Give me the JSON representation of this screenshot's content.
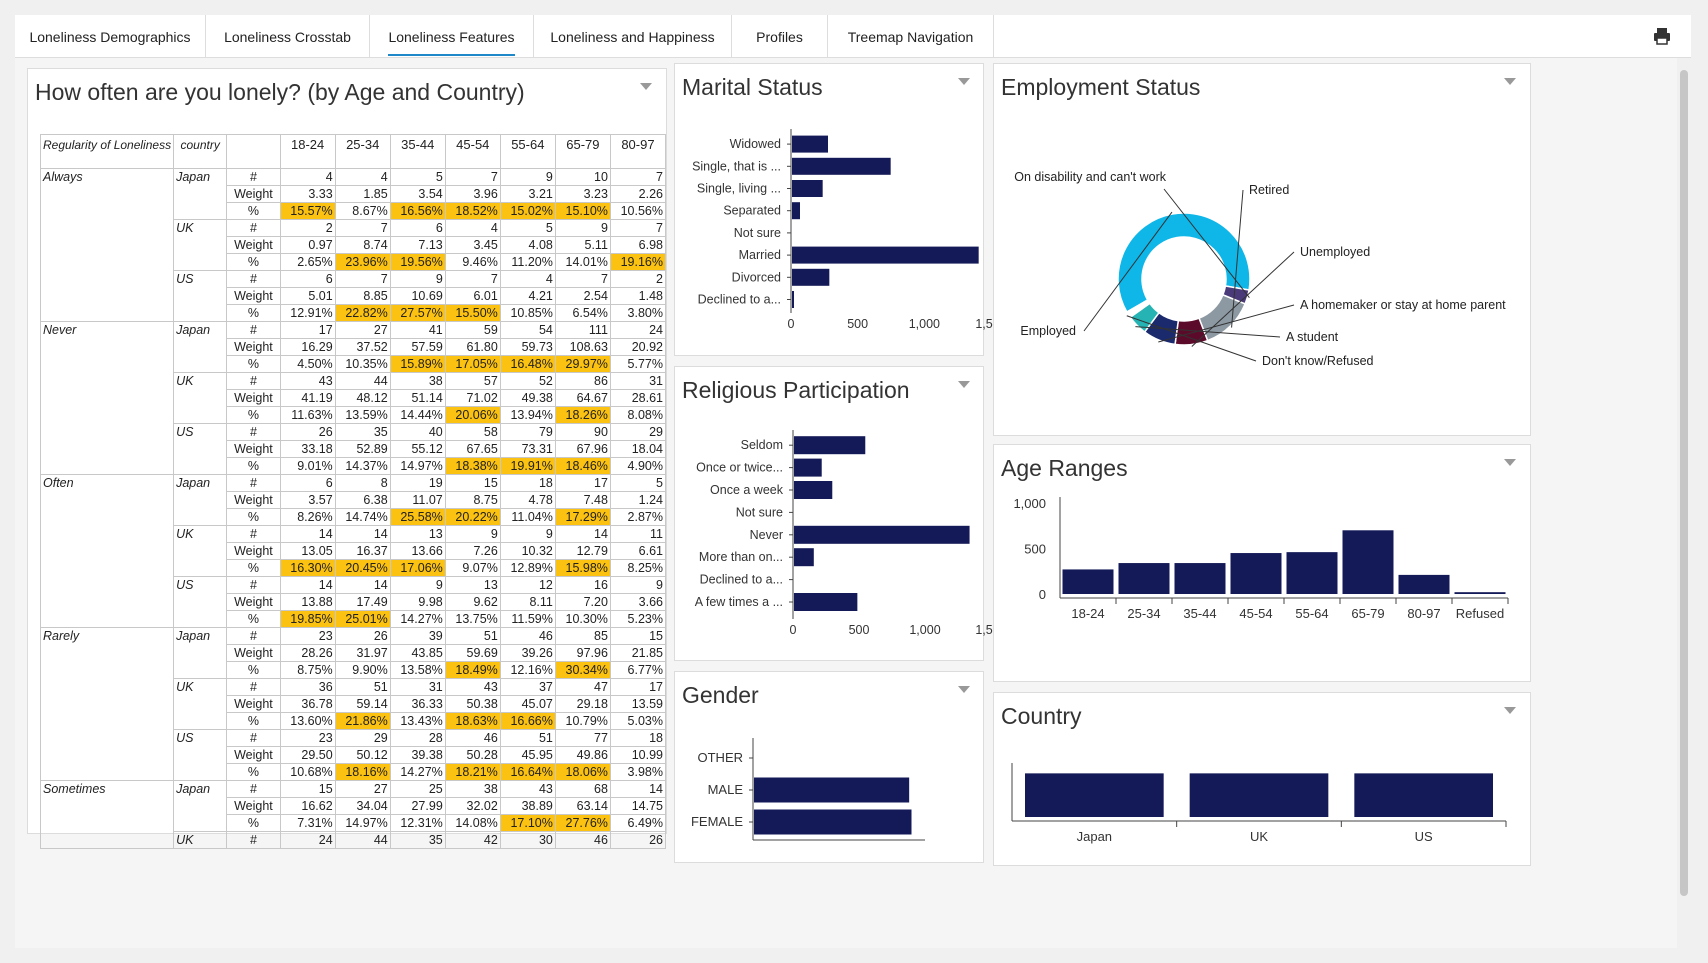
{
  "tabs": [
    {
      "label": "Loneliness Demographics",
      "active": false
    },
    {
      "label": "Loneliness Crosstab",
      "active": false
    },
    {
      "label": "Loneliness Features",
      "active": true
    },
    {
      "label": "Loneliness and Happiness",
      "active": false
    },
    {
      "label": "Profiles",
      "active": false
    },
    {
      "label": "Treemap Navigation",
      "active": false
    }
  ],
  "toolbar": {
    "print_icon": "printer-icon"
  },
  "colors": {
    "bar": "#141a57",
    "highlight": "#fcc211",
    "employed": "#0fb6e8",
    "retired": "#8c98a2",
    "unemployed": "#5c0a2a",
    "homemaker": "#1a2a6c",
    "student": "#26b3b3",
    "disability": "#4a3a7a",
    "tab_underline": "#1e88c8"
  },
  "crosstab": {
    "title": "How often are you lonely? (by Age and Country)",
    "header_regularity": "Regularity of Loneliness",
    "header_country": "country",
    "age_columns": [
      "18-24",
      "25-34",
      "35-44",
      "45-54",
      "55-64",
      "65-79",
      "80-97"
    ],
    "measures": [
      "#",
      "Weight",
      "%"
    ],
    "rows": [
      {
        "group": "Always",
        "country": "Japan",
        "count": [
          "4",
          "4",
          "5",
          "7",
          "9",
          "10",
          "7"
        ],
        "weight": [
          "3.33",
          "1.85",
          "3.54",
          "3.96",
          "3.21",
          "3.23",
          "2.26"
        ],
        "pct": [
          "15.57%",
          "8.67%",
          "16.56%",
          "18.52%",
          "15.02%",
          "15.10%",
          "10.56%"
        ],
        "hl": [
          1,
          0,
          1,
          1,
          1,
          1,
          0
        ]
      },
      {
        "group": "",
        "country": "UK",
        "count": [
          "2",
          "7",
          "6",
          "4",
          "5",
          "9",
          "7"
        ],
        "weight": [
          "0.97",
          "8.74",
          "7.13",
          "3.45",
          "4.08",
          "5.11",
          "6.98"
        ],
        "pct": [
          "2.65%",
          "23.96%",
          "19.56%",
          "9.46%",
          "11.20%",
          "14.01%",
          "19.16%"
        ],
        "hl": [
          0,
          1,
          1,
          0,
          0,
          0,
          1
        ]
      },
      {
        "group": "",
        "country": "US",
        "count": [
          "6",
          "7",
          "9",
          "7",
          "4",
          "7",
          "2"
        ],
        "weight": [
          "5.01",
          "8.85",
          "10.69",
          "6.01",
          "4.21",
          "2.54",
          "1.48"
        ],
        "pct": [
          "12.91%",
          "22.82%",
          "27.57%",
          "15.50%",
          "10.85%",
          "6.54%",
          "3.80%"
        ],
        "hl": [
          0,
          1,
          1,
          1,
          0,
          0,
          0
        ]
      },
      {
        "group": "Never",
        "country": "Japan",
        "count": [
          "17",
          "27",
          "41",
          "59",
          "54",
          "111",
          "24"
        ],
        "weight": [
          "16.29",
          "37.52",
          "57.59",
          "61.80",
          "59.73",
          "108.63",
          "20.92"
        ],
        "pct": [
          "4.50%",
          "10.35%",
          "15.89%",
          "17.05%",
          "16.48%",
          "29.97%",
          "5.77%"
        ],
        "hl": [
          0,
          0,
          1,
          1,
          1,
          1,
          0
        ]
      },
      {
        "group": "",
        "country": "UK",
        "count": [
          "43",
          "44",
          "38",
          "57",
          "52",
          "86",
          "31"
        ],
        "weight": [
          "41.19",
          "48.12",
          "51.14",
          "71.02",
          "49.38",
          "64.67",
          "28.61"
        ],
        "pct": [
          "11.63%",
          "13.59%",
          "14.44%",
          "20.06%",
          "13.94%",
          "18.26%",
          "8.08%"
        ],
        "hl": [
          0,
          0,
          0,
          1,
          0,
          1,
          0
        ]
      },
      {
        "group": "",
        "country": "US",
        "count": [
          "26",
          "35",
          "40",
          "58",
          "79",
          "90",
          "29"
        ],
        "weight": [
          "33.18",
          "52.89",
          "55.12",
          "67.65",
          "73.31",
          "67.96",
          "18.04"
        ],
        "pct": [
          "9.01%",
          "14.37%",
          "14.97%",
          "18.38%",
          "19.91%",
          "18.46%",
          "4.90%"
        ],
        "hl": [
          0,
          0,
          0,
          1,
          1,
          1,
          0
        ]
      },
      {
        "group": "Often",
        "country": "Japan",
        "count": [
          "6",
          "8",
          "19",
          "15",
          "18",
          "17",
          "5"
        ],
        "weight": [
          "3.57",
          "6.38",
          "11.07",
          "8.75",
          "4.78",
          "7.48",
          "1.24"
        ],
        "pct": [
          "8.26%",
          "14.74%",
          "25.58%",
          "20.22%",
          "11.04%",
          "17.29%",
          "2.87%"
        ],
        "hl": [
          0,
          0,
          1,
          1,
          0,
          1,
          0
        ]
      },
      {
        "group": "",
        "country": "UK",
        "count": [
          "14",
          "14",
          "13",
          "9",
          "9",
          "14",
          "11"
        ],
        "weight": [
          "13.05",
          "16.37",
          "13.66",
          "7.26",
          "10.32",
          "12.79",
          "6.61"
        ],
        "pct": [
          "16.30%",
          "20.45%",
          "17.06%",
          "9.07%",
          "12.89%",
          "15.98%",
          "8.25%"
        ],
        "hl": [
          1,
          1,
          1,
          0,
          0,
          1,
          0
        ]
      },
      {
        "group": "",
        "country": "US",
        "count": [
          "14",
          "14",
          "9",
          "13",
          "12",
          "16",
          "9"
        ],
        "weight": [
          "13.88",
          "17.49",
          "9.98",
          "9.62",
          "8.11",
          "7.20",
          "3.66"
        ],
        "pct": [
          "19.85%",
          "25.01%",
          "14.27%",
          "13.75%",
          "11.59%",
          "10.30%",
          "5.23%"
        ],
        "hl": [
          1,
          1,
          0,
          0,
          0,
          0,
          0
        ]
      },
      {
        "group": "Rarely",
        "country": "Japan",
        "count": [
          "23",
          "26",
          "39",
          "51",
          "46",
          "85",
          "15"
        ],
        "weight": [
          "28.26",
          "31.97",
          "43.85",
          "59.69",
          "39.26",
          "97.96",
          "21.85"
        ],
        "pct": [
          "8.75%",
          "9.90%",
          "13.58%",
          "18.49%",
          "12.16%",
          "30.34%",
          "6.77%"
        ],
        "hl": [
          0,
          0,
          0,
          1,
          0,
          1,
          0
        ]
      },
      {
        "group": "",
        "country": "UK",
        "count": [
          "36",
          "51",
          "31",
          "43",
          "37",
          "47",
          "17"
        ],
        "weight": [
          "36.78",
          "59.14",
          "36.33",
          "50.38",
          "45.07",
          "29.18",
          "13.59"
        ],
        "pct": [
          "13.60%",
          "21.86%",
          "13.43%",
          "18.63%",
          "16.66%",
          "10.79%",
          "5.03%"
        ],
        "hl": [
          0,
          1,
          0,
          1,
          1,
          0,
          0
        ]
      },
      {
        "group": "",
        "country": "US",
        "count": [
          "23",
          "29",
          "28",
          "46",
          "51",
          "77",
          "18"
        ],
        "weight": [
          "29.50",
          "50.12",
          "39.38",
          "50.28",
          "45.95",
          "49.86",
          "10.99"
        ],
        "pct": [
          "10.68%",
          "18.16%",
          "14.27%",
          "18.21%",
          "16.64%",
          "18.06%",
          "3.98%"
        ],
        "hl": [
          0,
          1,
          0,
          1,
          1,
          1,
          0
        ]
      },
      {
        "group": "Sometimes",
        "country": "Japan",
        "count": [
          "15",
          "27",
          "25",
          "38",
          "43",
          "68",
          "14"
        ],
        "weight": [
          "16.62",
          "34.04",
          "27.99",
          "32.02",
          "38.89",
          "63.14",
          "14.75"
        ],
        "pct": [
          "7.31%",
          "14.97%",
          "12.31%",
          "14.08%",
          "17.10%",
          "27.76%",
          "6.49%"
        ],
        "hl": [
          0,
          0,
          0,
          0,
          1,
          1,
          0
        ]
      },
      {
        "group": "",
        "country": "UK",
        "count": [
          "24",
          "44",
          "35",
          "42",
          "30",
          "46",
          "26"
        ],
        "weight": null,
        "pct": null,
        "hl": [
          0,
          0,
          0,
          0,
          0,
          0,
          0
        ]
      }
    ]
  },
  "chart_data": [
    {
      "id": "marital",
      "type": "bar",
      "orientation": "horizontal",
      "title": "Marital Status",
      "categories": [
        "Widowed",
        "Single, that is ...",
        "Single, living ...",
        "Separated",
        "Not sure",
        "Married",
        "Divorced",
        "Declined to a..."
      ],
      "values": [
        270,
        740,
        230,
        60,
        0,
        1400,
        280,
        15
      ],
      "xlim": [
        0,
        1500
      ],
      "ticks": [
        "0",
        "500",
        "1,000",
        "1,500"
      ]
    },
    {
      "id": "religion",
      "type": "bar",
      "orientation": "horizontal",
      "title": "Religious Participation",
      "categories": [
        "Seldom",
        "Once or twice...",
        "Once a week",
        "Not sure",
        "Never",
        "More than on...",
        "Declined to a...",
        "A few times a ..."
      ],
      "values": [
        540,
        210,
        290,
        0,
        1330,
        150,
        0,
        480
      ],
      "xlim": [
        0,
        1500
      ],
      "ticks": [
        "0",
        "500",
        "1,000",
        "1,500"
      ]
    },
    {
      "id": "gender",
      "type": "bar",
      "orientation": "horizontal",
      "title": "Gender",
      "categories": [
        "OTHER",
        "MALE",
        "FEMALE"
      ],
      "values": [
        0,
        1330,
        1350
      ],
      "xlim": [
        0,
        1800
      ]
    },
    {
      "id": "employment",
      "type": "pie",
      "title": "Employment Status",
      "donut": true,
      "labels": [
        "Employed",
        "On disability and can't work",
        "Retired",
        "Unemployed",
        "A homemaker or stay at home parent",
        "A student",
        "Don't know/Refused"
      ],
      "values": [
        61,
        3.5,
        13,
        8,
        8,
        5,
        1.5
      ]
    },
    {
      "id": "age",
      "type": "bar",
      "title": "Age Ranges",
      "categories": [
        "18-24",
        "25-34",
        "35-44",
        "45-54",
        "55-64",
        "65-79",
        "80-97",
        "Refused"
      ],
      "values": [
        270,
        340,
        340,
        450,
        460,
        700,
        210,
        20
      ],
      "ylim": [
        0,
        1000
      ],
      "ticks": [
        "0",
        "500",
        "1,000"
      ]
    },
    {
      "id": "country",
      "type": "bar",
      "title": "Country",
      "categories": [
        "Japan",
        "UK",
        "US"
      ],
      "values": [
        1000,
        1000,
        1000
      ],
      "ylim": [
        0,
        1100
      ]
    }
  ]
}
